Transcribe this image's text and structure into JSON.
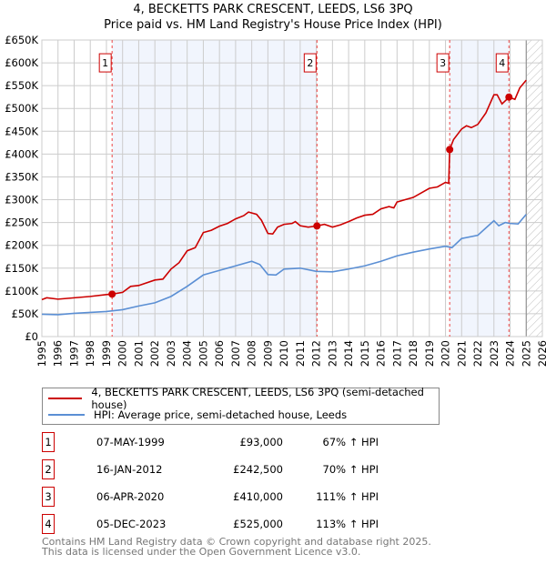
{
  "chart_data": {
    "type": "line",
    "title": "4, BECKETTS PARK CRESCENT, LEEDS, LS6 3PQ",
    "subtitle": "Price paid vs. HM Land Registry's House Price Index (HPI)",
    "xlim": [
      1995,
      2026
    ],
    "ylim": [
      0,
      650000
    ],
    "x_ticks": [
      "1995",
      "1996",
      "1997",
      "1998",
      "1999",
      "2000",
      "2001",
      "2002",
      "2003",
      "2004",
      "2005",
      "2006",
      "2007",
      "2008",
      "2009",
      "2010",
      "2011",
      "2012",
      "2013",
      "2014",
      "2015",
      "2016",
      "2017",
      "2018",
      "2019",
      "2020",
      "2021",
      "2022",
      "2023",
      "2024",
      "2025",
      "2026"
    ],
    "y_ticks": [
      "£0",
      "£50K",
      "£100K",
      "£150K",
      "£200K",
      "£250K",
      "£300K",
      "£350K",
      "£400K",
      "£450K",
      "£500K",
      "£550K",
      "£600K",
      "£650K"
    ],
    "grid": true,
    "legend_placement": "below",
    "series": [
      {
        "name": "4, BECKETTS PARK CRESCENT, LEEDS, LS6 3PQ (semi-detached house)",
        "color": "#cc0000",
        "x": [
          1995,
          1995.3,
          1996,
          1997,
          1998,
          1999,
          1999.35,
          2000,
          2000.5,
          2001,
          2002,
          2002.5,
          2003,
          2003.5,
          2004,
          2004.5,
          2005,
          2005.5,
          2006,
          2006.5,
          2007,
          2007.5,
          2007.8,
          2008.3,
          2008.6,
          2009,
          2009.3,
          2009.6,
          2010,
          2010.5,
          2010.7,
          2011,
          2011.5,
          2012.04,
          2012.5,
          2013,
          2013.5,
          2014,
          2014.5,
          2015,
          2015.5,
          2016,
          2016.5,
          2016.8,
          2017,
          2017.5,
          2018,
          2018.5,
          2019,
          2019.5,
          2020,
          2020.2,
          2020.26,
          2020.5,
          2021,
          2021.3,
          2021.6,
          2022,
          2022.5,
          2023,
          2023.2,
          2023.5,
          2023.8,
          2023.93,
          2024.3,
          2024.6,
          2025
        ],
        "y": [
          81000,
          85000,
          82000,
          85000,
          88000,
          92000,
          93000,
          97000,
          110000,
          112000,
          124000,
          126000,
          148000,
          162000,
          188000,
          195000,
          228000,
          233000,
          242000,
          248000,
          258000,
          265000,
          273000,
          268000,
          255000,
          226000,
          225000,
          240000,
          246000,
          248000,
          252000,
          243000,
          240000,
          242500,
          246000,
          240000,
          245000,
          252000,
          260000,
          266000,
          268000,
          280000,
          285000,
          282000,
          295000,
          300000,
          305000,
          315000,
          325000,
          328000,
          338000,
          336000,
          410000,
          432000,
          455000,
          462000,
          458000,
          465000,
          490000,
          530000,
          530000,
          510000,
          520000,
          525000,
          520000,
          545000,
          562000
        ]
      },
      {
        "name": "HPI: Average price, semi-detached house, Leeds",
        "color": "#5b8fd4",
        "x": [
          1995,
          1996,
          1997,
          1998,
          1999,
          2000,
          2001,
          2002,
          2003,
          2004,
          2005,
          2006,
          2007,
          2008,
          2008.5,
          2009,
          2009.5,
          2010,
          2011,
          2012,
          2013,
          2014,
          2015,
          2016,
          2017,
          2018,
          2019,
          2020,
          2020.4,
          2021,
          2022,
          2022.5,
          2023,
          2023.3,
          2023.7,
          2024,
          2024.5,
          2025
        ],
        "y": [
          49000,
          48000,
          51000,
          53000,
          55000,
          59000,
          67000,
          74000,
          88000,
          110000,
          135000,
          145000,
          155000,
          165000,
          158000,
          136000,
          135000,
          148000,
          150000,
          143000,
          142000,
          148000,
          155000,
          165000,
          177000,
          185000,
          192000,
          198000,
          195000,
          215000,
          222000,
          238000,
          254000,
          243000,
          250000,
          248000,
          247000,
          268000
        ]
      }
    ],
    "sales": [
      {
        "label": "1",
        "x": 1999.35,
        "y": 93000
      },
      {
        "label": "2",
        "x": 2012.04,
        "y": 242500
      },
      {
        "label": "3",
        "x": 2020.26,
        "y": 410000
      },
      {
        "label": "4",
        "x": 2023.93,
        "y": 525000
      }
    ],
    "data_end": 2025
  },
  "legend": {
    "property": "4, BECKETTS PARK CRESCENT, LEEDS, LS6 3PQ (semi-detached house)",
    "hpi": "HPI: Average price, semi-detached house, Leeds"
  },
  "transactions": [
    {
      "num": "1",
      "date": "07-MAY-1999",
      "price": "£93,000",
      "hpi": "67% ↑ HPI"
    },
    {
      "num": "2",
      "date": "16-JAN-2012",
      "price": "£242,500",
      "hpi": "70% ↑ HPI"
    },
    {
      "num": "3",
      "date": "06-APR-2020",
      "price": "£410,000",
      "hpi": "111% ↑ HPI"
    },
    {
      "num": "4",
      "date": "05-DEC-2023",
      "price": "£525,000",
      "hpi": "113% ↑ HPI"
    }
  ],
  "footer": [
    "Contains HM Land Registry data © Crown copyright and database right 2025.",
    "This data is licensed under the Open Government Licence v3.0."
  ]
}
